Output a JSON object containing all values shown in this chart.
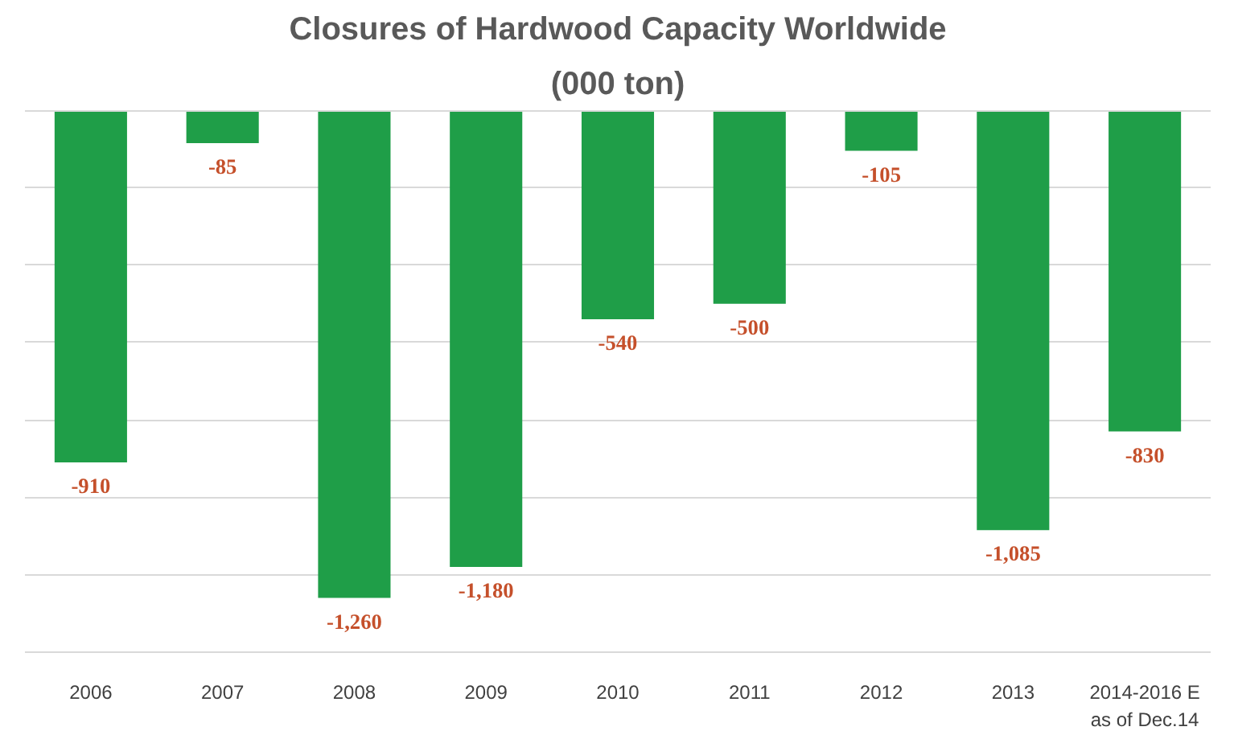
{
  "chart_data": {
    "type": "bar",
    "title": "Closures of Hardwood Capacity Worldwide",
    "subtitle": "(000 ton)",
    "categories": [
      "2006",
      "2007",
      "2008",
      "2009",
      "2010",
      "2011",
      "2012",
      "2013",
      "2014-2016 E\nas of Dec.14"
    ],
    "values": [
      -910,
      -85,
      -1260,
      -1180,
      -540,
      -500,
      -105,
      -1085,
      -830
    ],
    "value_labels": [
      "-910",
      "-85",
      "-1,260",
      "-1,180",
      "-540",
      "-500",
      "-105",
      "-1,085",
      "-830"
    ],
    "color": "#1f9e48",
    "ylim": [
      -1400,
      0
    ],
    "yticks": [
      {
        "value": 0,
        "label": null
      },
      {
        "value": -200,
        "label": null
      },
      {
        "value": -400,
        "label": null
      },
      {
        "value": -600,
        "label": null
      },
      {
        "value": -800,
        "label": null
      },
      {
        "value": -1000,
        "label": null
      },
      {
        "value": -1200,
        "label": null
      },
      {
        "value": -1400,
        "label": null
      }
    ],
    "grid": "y",
    "tick_labels": "x"
  }
}
